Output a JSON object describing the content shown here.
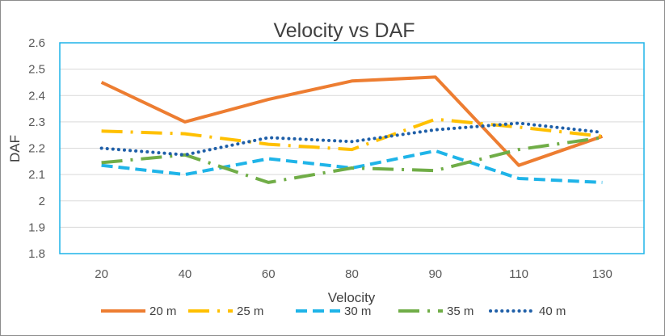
{
  "chart_data": {
    "type": "line",
    "title": "Velocity vs DAF",
    "xlabel": "Velocity",
    "ylabel": "DAF",
    "categories": [
      "20",
      "40",
      "60",
      "80",
      "90",
      "110",
      "130"
    ],
    "ylim": [
      1.8,
      2.6
    ],
    "yticks": [
      1.8,
      1.9,
      2,
      2.1,
      2.2,
      2.3,
      2.4,
      2.5,
      2.6
    ],
    "grid": true,
    "legend_position": "bottom",
    "series": [
      {
        "name": "20 m",
        "color": "#ED7D31",
        "dash": "solid",
        "values": [
          2.45,
          2.3,
          2.385,
          2.455,
          2.47,
          2.135,
          2.245
        ]
      },
      {
        "name": "25 m",
        "color": "#FFC000",
        "dash": "long-dash-dot",
        "values": [
          2.265,
          2.255,
          2.215,
          2.195,
          2.31,
          2.28,
          2.245
        ]
      },
      {
        "name": "30 m",
        "color": "#1FB4E8",
        "dash": "dash",
        "values": [
          2.135,
          2.1,
          2.16,
          2.125,
          2.19,
          2.085,
          2.07
        ]
      },
      {
        "name": "35 m",
        "color": "#70AD47",
        "dash": "long-dash-dot",
        "values": [
          2.145,
          2.175,
          2.07,
          2.125,
          2.115,
          2.195,
          2.24
        ]
      },
      {
        "name": "40 m",
        "color": "#1F5FA8",
        "dash": "round-dot",
        "values": [
          2.2,
          2.175,
          2.24,
          2.225,
          2.27,
          2.295,
          2.26
        ]
      }
    ]
  }
}
